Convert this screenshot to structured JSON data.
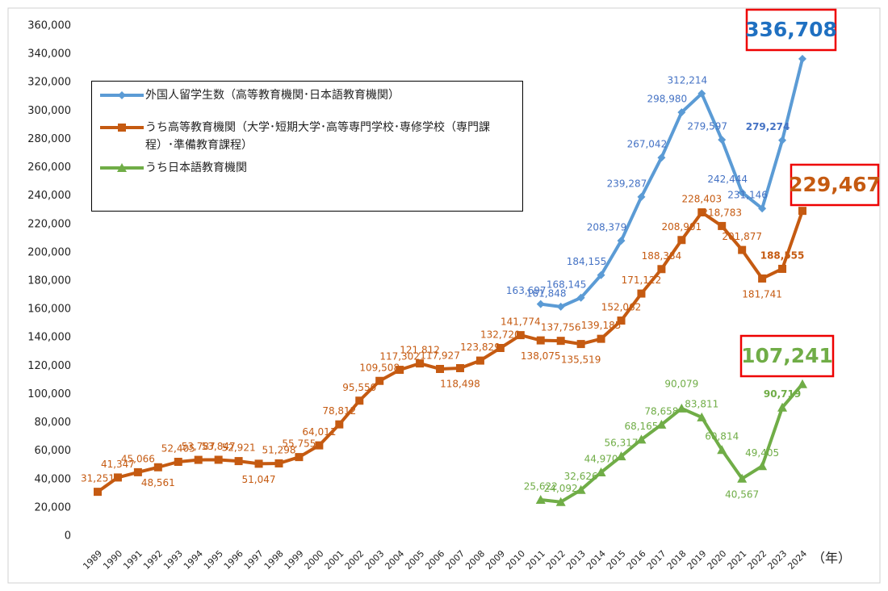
{
  "chart_data": {
    "type": "line",
    "categories": [
      "1989",
      "1990",
      "1991",
      "1992",
      "1993",
      "1994",
      "1995",
      "1996",
      "1997",
      "1998",
      "1999",
      "2000",
      "2001",
      "2002",
      "2003",
      "2004",
      "2005",
      "2006",
      "2007",
      "2008",
      "2009",
      "2010",
      "2011",
      "2012",
      "2013",
      "2014",
      "2015",
      "2016",
      "2017",
      "2018",
      "2019",
      "2020",
      "2021",
      "2022",
      "2023",
      "2024"
    ],
    "x_label": "（年）",
    "ylim": [
      0,
      360000
    ],
    "yticks": [
      0,
      {
        "value": 20000,
        "label": "20,000"
      },
      {
        "value": 40000,
        "label": "40,000"
      },
      {
        "value": 60000,
        "label": "60,000"
      },
      {
        "value": 80000,
        "label": "80,000"
      },
      {
        "value": 100000,
        "label": "100,000"
      },
      {
        "value": 120000,
        "label": "120,000"
      },
      {
        "value": 140000,
        "label": "140,000"
      },
      {
        "value": 160000,
        "label": "160,000"
      },
      {
        "value": 180000,
        "label": "180,000"
      },
      {
        "value": 200000,
        "label": "200,000"
      },
      {
        "value": 220000,
        "label": "220,000"
      },
      {
        "value": 240000,
        "label": "240,000"
      },
      {
        "value": 260000,
        "label": "260,000"
      },
      {
        "value": 280000,
        "label": "280,000"
      },
      {
        "value": 300000,
        "label": "300,000"
      },
      {
        "value": 320000,
        "label": "320,000"
      },
      {
        "value": 340000,
        "label": "340,000"
      },
      {
        "value": 360000,
        "label": "360,000"
      }
    ],
    "grid": false,
    "series": [
      {
        "name": "外国人留学生数（高等教育機関･日本語教育機関）",
        "color": "#5b9bd5",
        "marker": "diamond",
        "values": [
          null,
          null,
          null,
          null,
          null,
          null,
          null,
          null,
          null,
          null,
          null,
          null,
          null,
          null,
          null,
          null,
          null,
          null,
          null,
          null,
          null,
          null,
          163697,
          161848,
          168145,
          184155,
          208379,
          239287,
          267042,
          298980,
          312214,
          279597,
          242444,
          231146,
          279274,
          336708
        ],
        "value_labels": [
          null,
          null,
          null,
          null,
          null,
          null,
          null,
          null,
          null,
          null,
          null,
          null,
          null,
          null,
          null,
          null,
          null,
          null,
          null,
          null,
          null,
          null,
          "163,697",
          "161,848",
          "168,145",
          "184,155",
          "208,379",
          "239,287",
          "267,042",
          "298,980",
          "312,214",
          "279,597",
          "242,444",
          "231,146",
          "279,274",
          "336,708"
        ]
      },
      {
        "name": "うち高等教育機関（大学･短期大学･高等専門学校･専修学校（専門課程）･準備教育課程）",
        "color": "#c55a11",
        "marker": "square",
        "values": [
          31251,
          41347,
          45066,
          48561,
          52405,
          53787,
          53847,
          52921,
          51047,
          51298,
          55755,
          64011,
          78812,
          95550,
          109508,
          117302,
          121812,
          117927,
          118498,
          123829,
          132720,
          141774,
          138075,
          137756,
          135519,
          139185,
          152062,
          171122,
          188384,
          208901,
          228403,
          218783,
          201877,
          181741,
          188555,
          229467
        ],
        "value_labels": [
          "31,251",
          "41,347",
          "45,066",
          "48,561",
          "52,405",
          "53,787",
          "53,847",
          "52,921",
          "51,047",
          "51,298",
          "55,755",
          "64,011",
          "78,812",
          "95,550",
          "109,508",
          "117,302",
          "121,812",
          "117,927",
          "118,498",
          "123,829",
          "132,720",
          "141,774",
          "138,075",
          "137,756",
          "135,519",
          "139,185",
          "152,062",
          "171,122",
          "188,384",
          "208,901",
          "228,403",
          "218,783",
          "201,877",
          "181,741",
          "188,555",
          "229,467"
        ]
      },
      {
        "name": "うち日本語教育機関",
        "color": "#70ad47",
        "marker": "triangle",
        "values": [
          null,
          null,
          null,
          null,
          null,
          null,
          null,
          null,
          null,
          null,
          null,
          null,
          null,
          null,
          null,
          null,
          null,
          null,
          null,
          null,
          null,
          null,
          25622,
          24092,
          32626,
          44970,
          56317,
          68165,
          78658,
          90079,
          83811,
          60814,
          40567,
          49405,
          90719,
          107241
        ],
        "value_labels": [
          null,
          null,
          null,
          null,
          null,
          null,
          null,
          null,
          null,
          null,
          null,
          null,
          null,
          null,
          null,
          null,
          null,
          null,
          null,
          null,
          null,
          null,
          "25,622",
          "24,092",
          "32,626",
          "44,970",
          "56,317",
          "68,165",
          "78,658",
          "90,079",
          "83,811",
          "60,814",
          "40,567",
          "49,405",
          "90,719",
          "107,241"
        ]
      }
    ]
  }
}
